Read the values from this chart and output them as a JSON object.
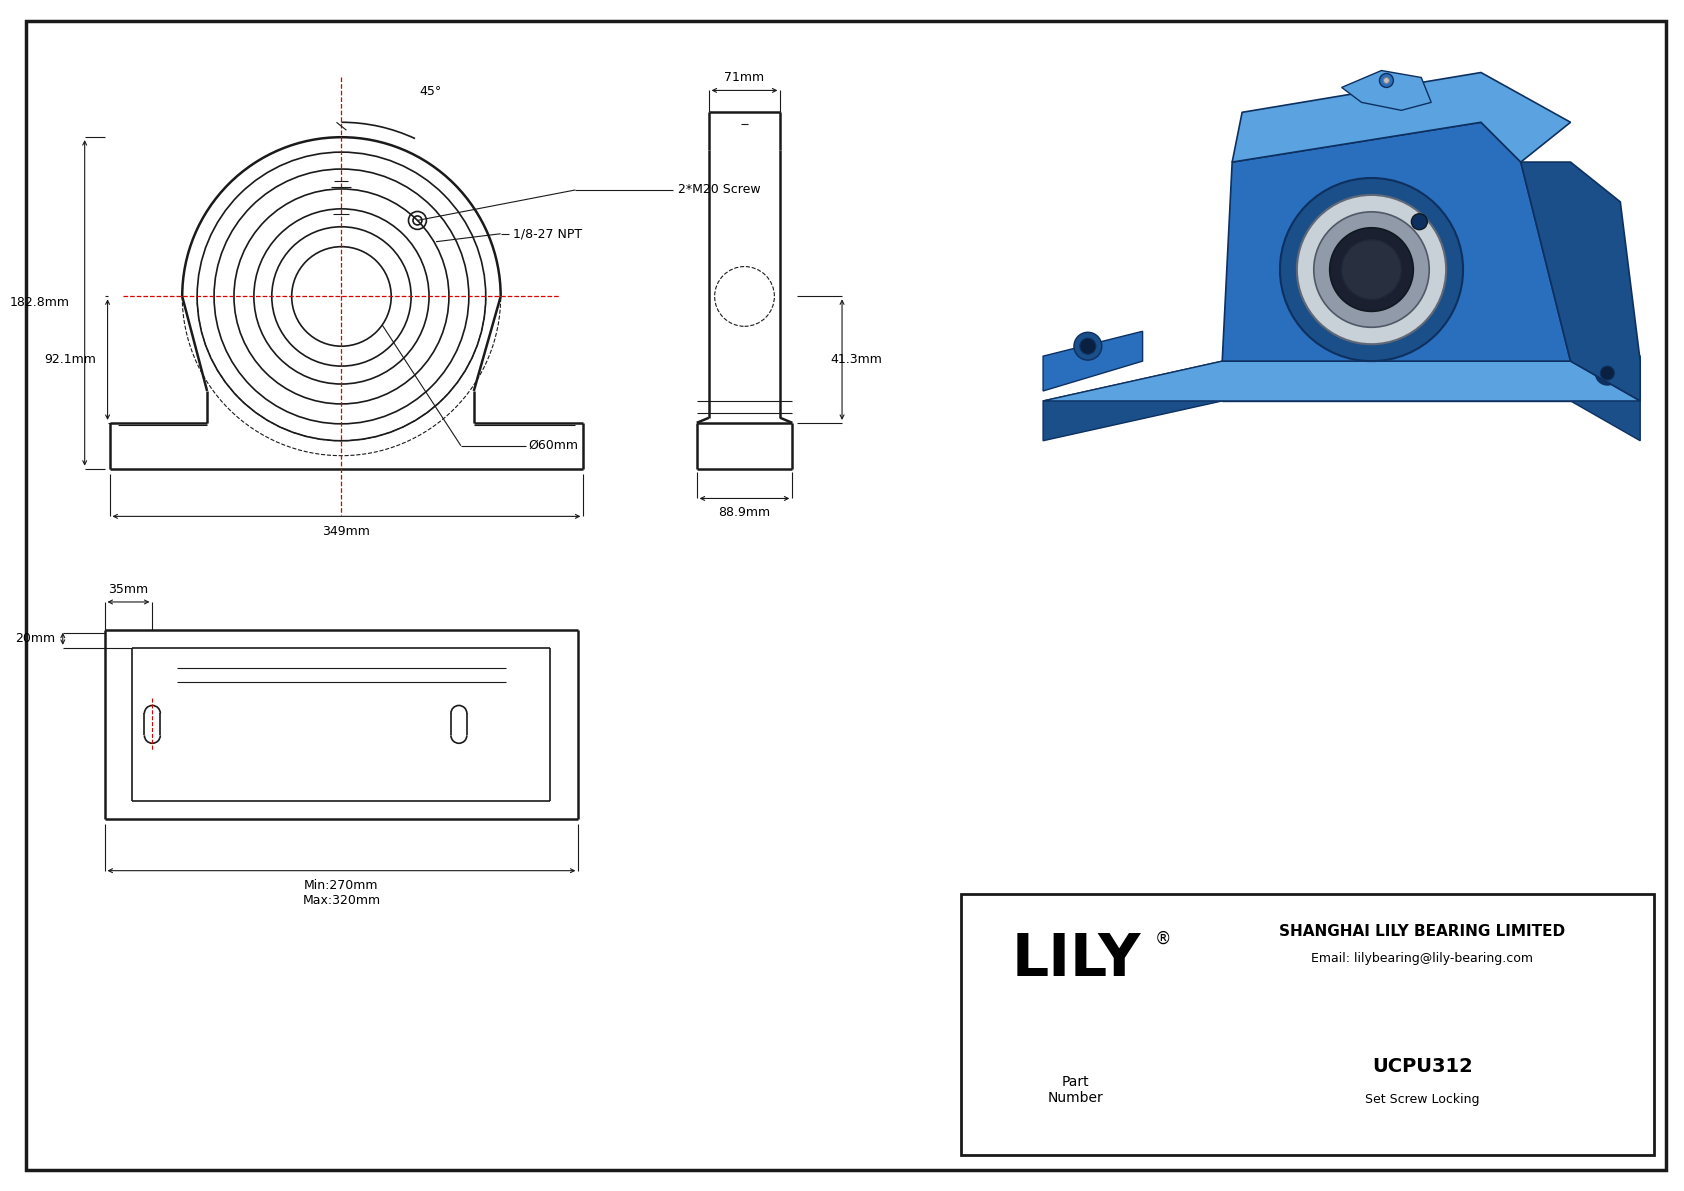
{
  "bg_color": "#ffffff",
  "line_color": "#1a1a1a",
  "red_color": "#dd0000",
  "dim_182": "182.8mm",
  "dim_92": "92.1mm",
  "dim_349": "349mm",
  "dim_60": "Ø60mm",
  "dim_45": "45°",
  "dim_2m20": "2*M20 Screw",
  "dim_npt": "1/8-27 NPT",
  "dim_71": "71mm",
  "dim_413": "41.3mm",
  "dim_889": "88.9mm",
  "dim_35": "35mm",
  "dim_20": "20mm",
  "dim_min": "Min:270mm",
  "dim_max": "Max:320mm",
  "company": "SHANGHAI LILY BEARING LIMITED",
  "email": "Email: lilybearing@lily-bearing.com",
  "part_number": "UCPU312",
  "locking": "Set Screw Locking",
  "logo": "LILY",
  "part_label": "Part\nNumber",
  "blue_light": "#5ba3e0",
  "blue_mid": "#2a6fbd",
  "blue_dark": "#1a4f8a",
  "blue_very_dark": "#0d3060",
  "silver": "#c8d0d8",
  "silver_dark": "#909aa8"
}
